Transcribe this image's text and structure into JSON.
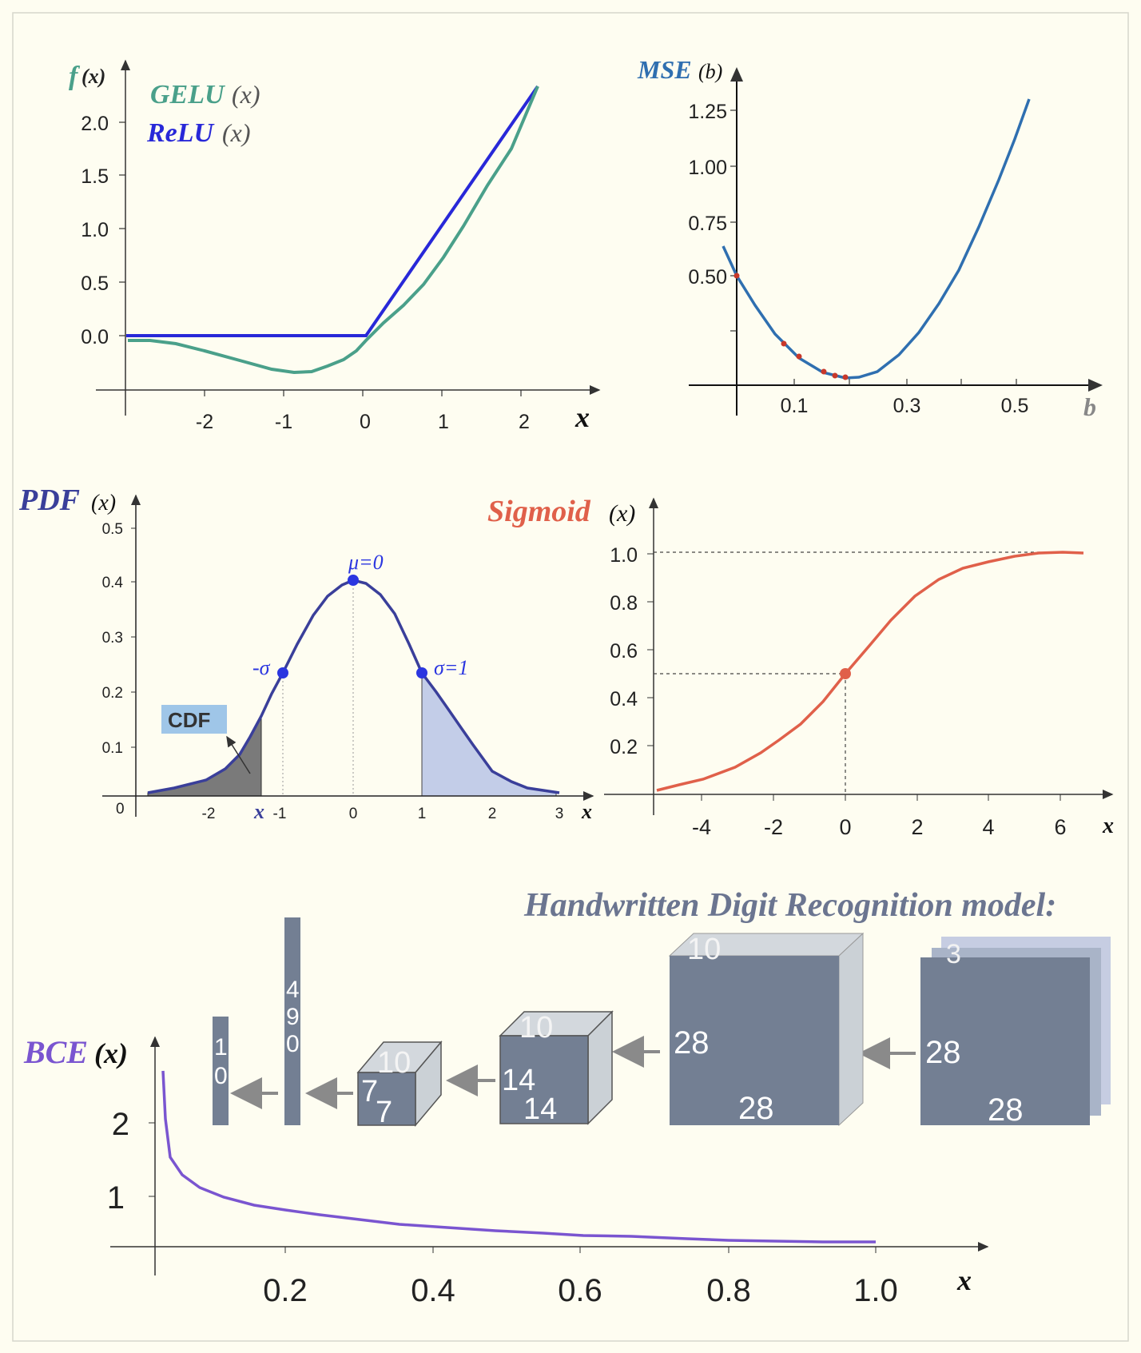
{
  "colors": {
    "background": "#fefdf1",
    "gelu": "#4aa08a",
    "relu": "#2828d8",
    "mse": "#2f6fb0",
    "mse_points": "#c8382a",
    "pdf": "#3a3f9a",
    "pdf_points": "#2b36e0",
    "sigmoid": "#e0604a",
    "bce": "#7a55d0",
    "model_block": "#737f93",
    "model_block_light": "#cdd3d9"
  },
  "gelu_panel": {
    "y_label_f": "f",
    "y_label_x": "(x)",
    "legend_gelu_name": "GELU",
    "legend_gelu_arg": "(x)",
    "legend_relu_name": "ReLU",
    "legend_relu_arg": "(x)",
    "x_label": "x",
    "x_ticks": [
      "-2",
      "-1",
      "0",
      "1",
      "2"
    ],
    "y_ticks": [
      "0.0",
      "0.5",
      "1.0",
      "1.5",
      "2.0"
    ]
  },
  "mse_panel": {
    "y_label_name": "MSE",
    "y_label_arg": "(b)",
    "x_label": "b",
    "x_ticks": [
      "0.1",
      "0.3",
      "0.5"
    ],
    "y_ticks": [
      "0.50",
      "0.75",
      "1.00",
      "1.25"
    ]
  },
  "pdf_panel": {
    "y_label_name": "PDF",
    "y_label_arg": "(x)",
    "x_label": "x",
    "origin_label": "0",
    "x_ticks": [
      "-2",
      "-1",
      "0",
      "1",
      "2",
      "3"
    ],
    "y_ticks": [
      "0.1",
      "0.2",
      "0.3",
      "0.4",
      "0.5"
    ],
    "mu_label": "μ=0",
    "neg_sigma_label": "-σ",
    "sigma_label": "σ=1",
    "cdf_label": "CDF",
    "cdf_x_marker": "x"
  },
  "sigmoid_panel": {
    "y_label_name": "Sigmoid",
    "y_label_arg": "(x)",
    "x_label": "x",
    "x_ticks": [
      "-4",
      "-2",
      "0",
      "2",
      "4",
      "6"
    ],
    "y_ticks": [
      "0.2",
      "0.4",
      "0.6",
      "0.8",
      "1.0"
    ]
  },
  "bce_panel": {
    "y_label_name": "BCE",
    "y_label_arg": "(x)",
    "x_label": "x",
    "x_ticks": [
      "0.2",
      "0.4",
      "0.6",
      "0.8",
      "1.0"
    ],
    "y_ticks": [
      "1",
      "2"
    ]
  },
  "model_diagram": {
    "title": "Handwritten Digit Recognition model:",
    "input": {
      "channels": "3",
      "height": "28",
      "width": "28"
    },
    "conv1": {
      "channels": "10",
      "height": "28",
      "width": "28"
    },
    "pool1": {
      "channels": "10",
      "height": "14",
      "width": "14"
    },
    "pool2": {
      "channels": "10",
      "height": "7",
      "width": "7"
    },
    "flatten": {
      "digits": [
        "4",
        "9",
        "0"
      ]
    },
    "output": {
      "digits": [
        "1",
        "0"
      ]
    }
  },
  "chart_data": [
    {
      "type": "line",
      "series": [
        {
          "name": "GELU",
          "x": [
            -3,
            -2.5,
            -2,
            -1.5,
            -1,
            -0.75,
            -0.5,
            0,
            0.5,
            1,
            1.5,
            2,
            2.2
          ],
          "y": [
            -0.004,
            -0.015,
            -0.045,
            -0.1,
            -0.159,
            -0.17,
            -0.154,
            0,
            0.346,
            0.841,
            1.4,
            1.955,
            2.2
          ]
        },
        {
          "name": "ReLU",
          "x": [
            -3,
            0,
            2.2
          ],
          "y": [
            0,
            0,
            2.2
          ]
        }
      ],
      "xlabel": "x",
      "ylabel": "f(x)",
      "xlim": [
        -3,
        2.5
      ],
      "ylim": [
        -0.25,
        2.3
      ]
    },
    {
      "type": "line",
      "series": [
        {
          "x": [
            -0.01,
            0,
            0.05,
            0.1,
            0.15,
            0.19,
            0.25,
            0.3,
            0.4,
            0.5,
            0.53
          ],
          "y": [
            0.63,
            0.5,
            0.3,
            0.16,
            0.08,
            0.06,
            0.1,
            0.18,
            0.5,
            1.05,
            1.28
          ]
        }
      ],
      "points": {
        "x": [
          0,
          0.08,
          0.11,
          0.155,
          0.175,
          0.19
        ],
        "y": [
          0.5,
          0.19,
          0.13,
          0.075,
          0.065,
          0.06
        ]
      },
      "xlabel": "b",
      "ylabel": "MSE(b)",
      "xlim": [
        -0.02,
        0.65
      ],
      "ylim": [
        0,
        1.38
      ]
    },
    {
      "type": "area",
      "series": [
        {
          "x": [
            -3,
            -2.5,
            -2,
            -1.5,
            -1,
            -0.5,
            0,
            0.5,
            1,
            1.5,
            2,
            2.5,
            3
          ],
          "y": [
            0.004,
            0.018,
            0.054,
            0.13,
            0.242,
            0.352,
            0.399,
            0.352,
            0.242,
            0.13,
            0.054,
            0.018,
            0.004
          ]
        }
      ],
      "shaded": [
        {
          "from": -3,
          "to": -1.3
        },
        {
          "from": 1,
          "to": 3
        }
      ],
      "points": {
        "x": [
          -1,
          0,
          1
        ],
        "y": [
          0.242,
          0.399,
          0.242
        ]
      },
      "xlabel": "x",
      "ylabel": "PDF(x)",
      "xlim": [
        -3.2,
        3.4
      ],
      "ylim": [
        0,
        0.5
      ]
    },
    {
      "type": "line",
      "series": [
        {
          "x": [
            -5.3,
            -4,
            -3,
            -2,
            -1,
            0,
            1,
            2,
            3,
            4,
            5,
            6,
            6.7
          ],
          "y": [
            0.005,
            0.018,
            0.047,
            0.119,
            0.269,
            0.5,
            0.731,
            0.881,
            0.953,
            0.982,
            0.993,
            0.998,
            1.0
          ]
        }
      ],
      "points": {
        "x": [
          0
        ],
        "y": [
          0.5
        ]
      },
      "xlabel": "x",
      "ylabel": "Sigmoid(x)",
      "xlim": [
        -5.5,
        7.5
      ],
      "ylim": [
        0,
        1.1
      ]
    },
    {
      "type": "line",
      "series": [
        {
          "x": [
            0.07,
            0.08,
            0.1,
            0.13,
            0.17,
            0.2,
            0.3,
            0.4,
            0.5,
            0.6,
            0.7,
            0.8,
            0.9,
            1.0
          ],
          "y": [
            2.6,
            1.55,
            1.3,
            1.12,
            0.98,
            0.9,
            0.76,
            0.64,
            0.55,
            0.45,
            0.34,
            0.22,
            0.11,
            0.02
          ]
        }
      ],
      "xlabel": "x",
      "ylabel": "BCE(x)",
      "xlim": [
        0,
        1.15
      ],
      "ylim": [
        0,
        2.9
      ]
    }
  ]
}
